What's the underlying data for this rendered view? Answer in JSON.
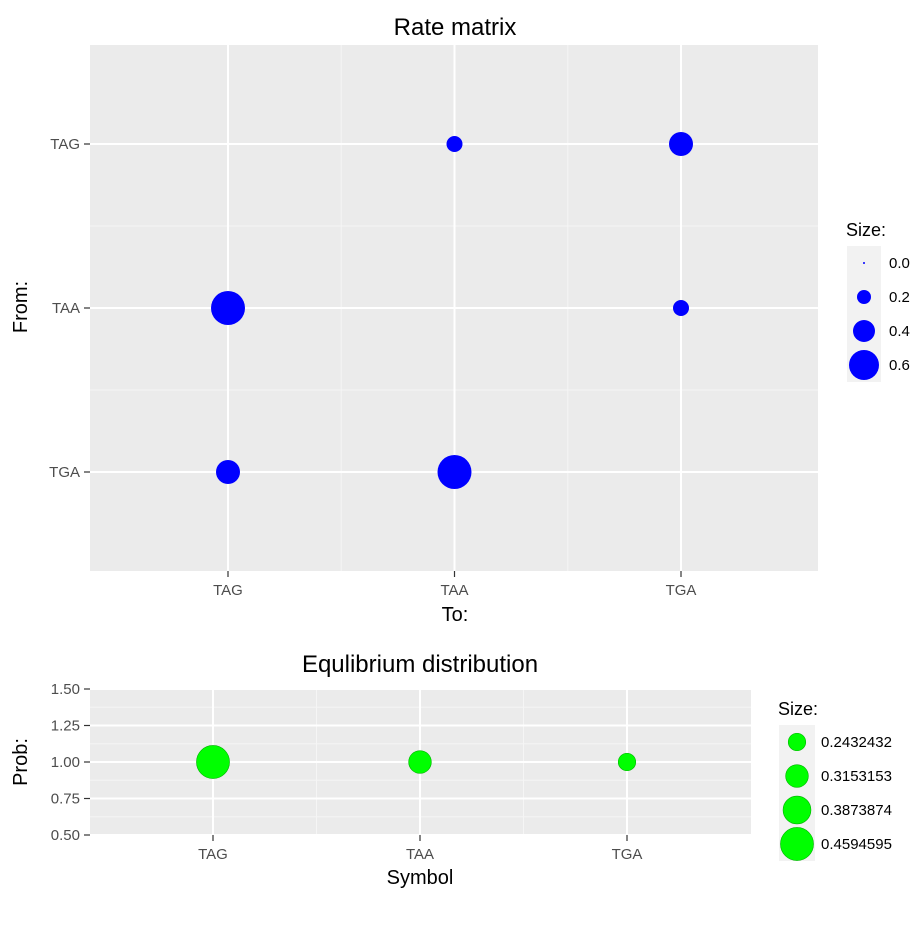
{
  "chart_data": [
    {
      "type": "scatter",
      "title": "Rate matrix",
      "xlabel": "To:",
      "ylabel": "From:",
      "x_categories": [
        "TAG",
        "TAA",
        "TGA"
      ],
      "y_categories": [
        "TAG",
        "TAA",
        "TGA"
      ],
      "points": [
        {
          "from": "TAG",
          "to": "TAA",
          "size": 0.25
        },
        {
          "from": "TAG",
          "to": "TGA",
          "size": 0.45
        },
        {
          "from": "TAA",
          "to": "TAG",
          "size": 0.7
        },
        {
          "from": "TAA",
          "to": "TGA",
          "size": 0.25
        },
        {
          "from": "TGA",
          "to": "TAG",
          "size": 0.45
        },
        {
          "from": "TGA",
          "to": "TAA",
          "size": 0.7
        }
      ],
      "color": "#0000ff",
      "legend": {
        "title": "Size:",
        "position": "right",
        "entries": [
          "0.0",
          "0.2",
          "0.4",
          "0.6"
        ],
        "values": [
          0.0,
          0.2,
          0.4,
          0.6
        ]
      },
      "grid": true
    },
    {
      "type": "scatter",
      "title": "Equlibrium distribution",
      "xlabel": "Symbol",
      "ylabel": "Prob:",
      "x_categories": [
        "TAG",
        "TAA",
        "TGA"
      ],
      "y_ticks": [
        "0.50",
        "0.75",
        "1.00",
        "1.25",
        "1.50"
      ],
      "ylim": [
        0.5,
        1.5
      ],
      "points": [
        {
          "symbol": "TAG",
          "prob": 1.0,
          "size": 0.4594595
        },
        {
          "symbol": "TAA",
          "prob": 1.0,
          "size": 0.3153153
        },
        {
          "symbol": "TGA",
          "prob": 1.0,
          "size": 0.2432432
        }
      ],
      "color": "#00ff00",
      "legend": {
        "title": "Size:",
        "position": "right",
        "entries": [
          "0.2432432",
          "0.3153153",
          "0.3873874",
          "0.4594595"
        ],
        "values": [
          0.2432432,
          0.3153153,
          0.3873874,
          0.4594595
        ]
      },
      "grid": true
    }
  ]
}
